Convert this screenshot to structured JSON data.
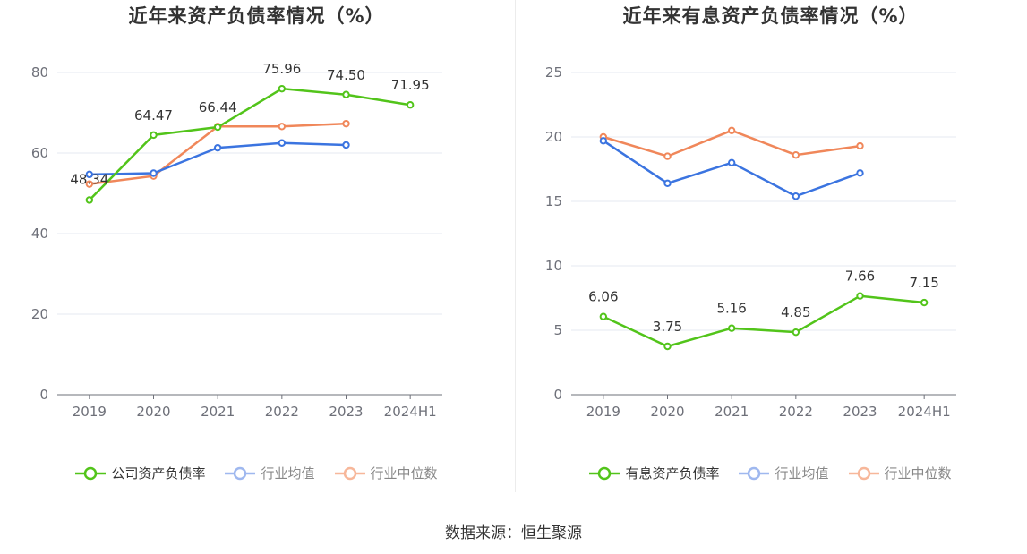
{
  "chart_data": [
    {
      "type": "line",
      "title": "近年来资产负债率情况（%）",
      "categories": [
        "2019",
        "2020",
        "2021",
        "2022",
        "2023",
        "2024H1"
      ],
      "ylim": [
        0,
        80
      ],
      "yticks": [
        "0",
        "20",
        "40",
        "60",
        "80"
      ],
      "grid": true,
      "legend_position": "bottom",
      "series": [
        {
          "name": "公司资产负债率",
          "color": "#52c41a",
          "values": [
            48.34,
            64.47,
            66.44,
            75.96,
            74.5,
            71.95
          ],
          "labels": [
            "48.34",
            "64.47",
            "66.44",
            "75.96",
            "74.50",
            "71.95"
          ],
          "label_offsets": [
            -18,
            -17,
            -17,
            -17,
            -17,
            -17
          ]
        },
        {
          "name": "行业均值",
          "color": "#3b74e0",
          "values": [
            54.7,
            55.0,
            61.3,
            62.5,
            62.0,
            null
          ]
        },
        {
          "name": "行业中位数",
          "color": "#f0875a",
          "values": [
            52.3,
            54.3,
            66.6,
            66.6,
            67.3,
            null
          ]
        }
      ]
    },
    {
      "type": "line",
      "title": "近年来有息资产负债率情况（%）",
      "categories": [
        "2019",
        "2020",
        "2021",
        "2022",
        "2023",
        "2024H1"
      ],
      "ylim": [
        0,
        25
      ],
      "yticks": [
        "0",
        "5",
        "10",
        "15",
        "20",
        "25"
      ],
      "grid": true,
      "legend_position": "bottom",
      "series": [
        {
          "name": "有息资产负债率",
          "color": "#52c41a",
          "values": [
            6.06,
            3.75,
            5.16,
            4.85,
            7.66,
            7.15
          ],
          "labels": [
            "6.06",
            "3.75",
            "5.16",
            "4.85",
            "7.66",
            "7.15"
          ],
          "label_offsets": [
            -17,
            -17,
            -17,
            -17,
            -17,
            -17
          ]
        },
        {
          "name": "行业均值",
          "color": "#3b74e0",
          "values": [
            19.7,
            16.4,
            18.0,
            15.4,
            17.2,
            null
          ]
        },
        {
          "name": "行业中位数",
          "color": "#f0875a",
          "values": [
            20.0,
            18.5,
            20.5,
            18.6,
            19.3,
            null
          ]
        }
      ]
    }
  ],
  "source": "数据来源：恒生聚源"
}
